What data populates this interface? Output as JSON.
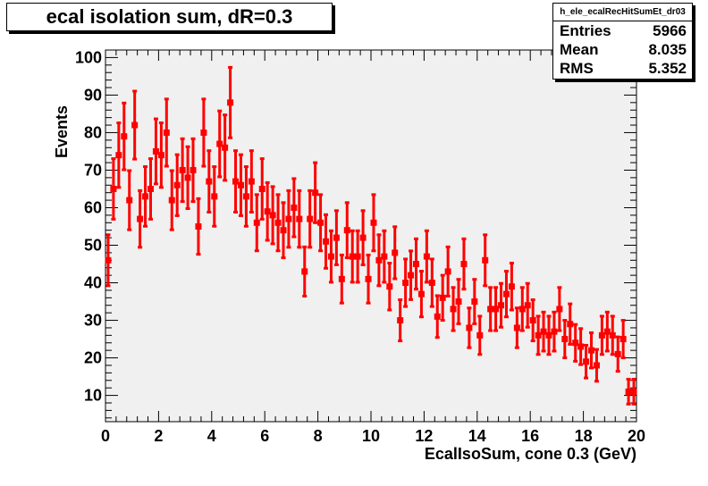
{
  "title": "ecal isolation sum, dR=0.3",
  "stats": {
    "name": "h_ele_ecalRecHitSumEt_dr03",
    "rows": [
      {
        "label": "Entries",
        "value": "5966"
      },
      {
        "label": "Mean",
        "value": "8.035"
      },
      {
        "label": "RMS",
        "value": "5.352"
      }
    ]
  },
  "colors": {
    "marker": "#ff0000",
    "frame_bg": "#f0f0f0"
  },
  "chart_data": {
    "type": "scatter",
    "xlabel": "EcalIsoSum, cone 0.3 (GeV)",
    "ylabel": "Events",
    "xlim": [
      0,
      20
    ],
    "ylim": [
      3,
      102
    ],
    "grid": false,
    "xticks": [
      0,
      2,
      4,
      6,
      8,
      10,
      12,
      14,
      16,
      18,
      20
    ],
    "yticks": [
      10,
      20,
      30,
      40,
      50,
      60,
      70,
      80,
      90,
      100
    ],
    "bin_width": 0.2,
    "x": [
      0.1,
      0.3,
      0.5,
      0.7,
      0.9,
      1.1,
      1.3,
      1.5,
      1.7,
      1.9,
      2.1,
      2.3,
      2.5,
      2.7,
      2.9,
      3.1,
      3.3,
      3.5,
      3.7,
      3.9,
      4.1,
      4.3,
      4.5,
      4.7,
      4.9,
      5.1,
      5.3,
      5.5,
      5.7,
      5.9,
      6.1,
      6.3,
      6.5,
      6.7,
      6.9,
      7.1,
      7.3,
      7.5,
      7.7,
      7.9,
      8.1,
      8.3,
      8.5,
      8.7,
      8.9,
      9.1,
      9.3,
      9.5,
      9.7,
      9.9,
      10.1,
      10.3,
      10.5,
      10.7,
      10.9,
      11.1,
      11.3,
      11.5,
      11.7,
      11.9,
      12.1,
      12.3,
      12.5,
      12.7,
      12.9,
      13.1,
      13.3,
      13.5,
      13.7,
      13.9,
      14.1,
      14.3,
      14.5,
      14.7,
      14.9,
      15.1,
      15.3,
      15.5,
      15.7,
      15.9,
      16.1,
      16.3,
      16.5,
      16.7,
      16.9,
      17.1,
      17.3,
      17.5,
      17.7,
      17.9,
      18.1,
      18.3,
      18.5,
      18.7,
      18.9,
      19.1,
      19.3,
      19.5,
      19.7,
      19.9
    ],
    "y": [
      46,
      65,
      74,
      79,
      62,
      82,
      57,
      63,
      65,
      75,
      74,
      80,
      62,
      66,
      70,
      68,
      70,
      55,
      80,
      67,
      63,
      77,
      76,
      88,
      67,
      66,
      63,
      67,
      56,
      65,
      59,
      58,
      56,
      54,
      57,
      60,
      57,
      43,
      57,
      64,
      56,
      51,
      47,
      52,
      41,
      54,
      47,
      47,
      52,
      41,
      56,
      46,
      47,
      39,
      48,
      30,
      40,
      42,
      45,
      37,
      47,
      40,
      31,
      36,
      43,
      33,
      35,
      45,
      28,
      35,
      26,
      46,
      33,
      33,
      34,
      37,
      39,
      28,
      33,
      34,
      30,
      26,
      27,
      26,
      27,
      33,
      25,
      29,
      24,
      23,
      19,
      22,
      18,
      26,
      27,
      26,
      21,
      25,
      11,
      11
    ]
  }
}
